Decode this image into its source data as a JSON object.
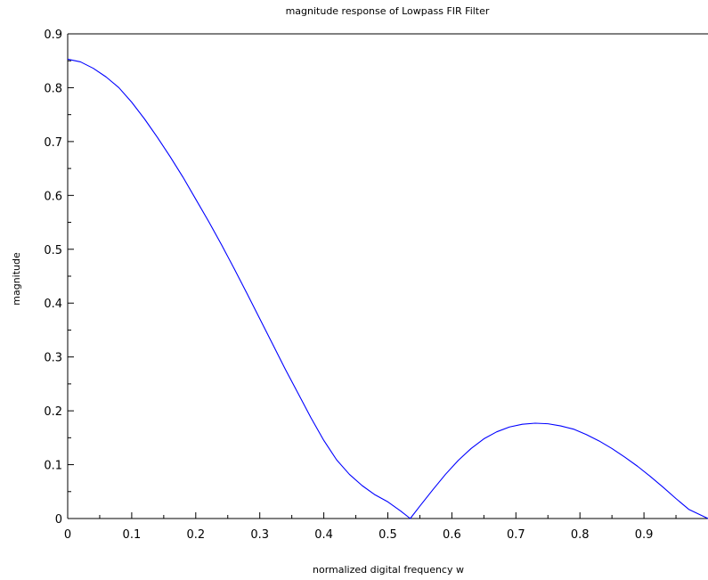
{
  "chart_data": {
    "type": "line",
    "title": "magnitude response of Lowpass FIR Filter",
    "xlabel": "normalized digital frequency w",
    "ylabel": "magnitude",
    "xlim": [
      0,
      1
    ],
    "ylim": [
      0,
      0.9
    ],
    "xticks": [
      0,
      0.1,
      0.2,
      0.3,
      0.4,
      0.5,
      0.6,
      0.7,
      0.8,
      0.9
    ],
    "xtick_labels": [
      "0",
      "0.1",
      "0.2",
      "0.3",
      "0.4",
      "0.5",
      "0.6",
      "0.7",
      "0.8",
      "0.9"
    ],
    "yticks": [
      0,
      0.1,
      0.2,
      0.3,
      0.4,
      0.5,
      0.6,
      0.7,
      0.8,
      0.9
    ],
    "ytick_labels": [
      "0",
      "0.1",
      "0.2",
      "0.3",
      "0.4",
      "0.5",
      "0.6",
      "0.7",
      "0.8",
      "0.9"
    ],
    "grid": false,
    "line_color": "#0000ff",
    "series": [
      {
        "x": [
          0,
          0.02,
          0.04,
          0.06,
          0.08,
          0.1,
          0.12,
          0.14,
          0.16,
          0.18,
          0.2,
          0.22,
          0.24,
          0.26,
          0.28,
          0.3,
          0.32,
          0.34,
          0.36,
          0.38,
          0.4,
          0.42,
          0.44,
          0.46,
          0.48,
          0.5,
          0.52,
          0.535,
          0.55,
          0.57,
          0.59,
          0.61,
          0.63,
          0.65,
          0.67,
          0.69,
          0.71,
          0.73,
          0.75,
          0.77,
          0.79,
          0.81,
          0.83,
          0.85,
          0.87,
          0.89,
          0.91,
          0.93,
          0.95,
          0.97,
          1.0
        ],
        "y": [
          0.853,
          0.848,
          0.836,
          0.82,
          0.8,
          0.773,
          0.742,
          0.708,
          0.672,
          0.634,
          0.593,
          0.552,
          0.509,
          0.464,
          0.418,
          0.371,
          0.324,
          0.277,
          0.232,
          0.187,
          0.145,
          0.109,
          0.082,
          0.061,
          0.044,
          0.031,
          0.014,
          0.0,
          0.023,
          0.053,
          0.082,
          0.108,
          0.13,
          0.148,
          0.161,
          0.17,
          0.175,
          0.177,
          0.176,
          0.172,
          0.166,
          0.156,
          0.144,
          0.13,
          0.114,
          0.097,
          0.078,
          0.058,
          0.037,
          0.017,
          0.0
        ]
      }
    ]
  }
}
